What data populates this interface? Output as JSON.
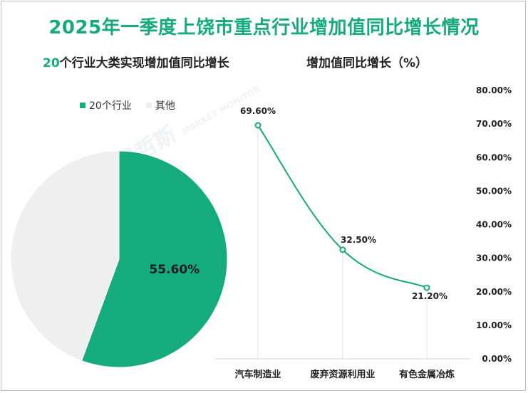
{
  "title": "2025年一季度上饶市重点行业增加值同比增长情况",
  "watermark": {
    "brand": "贝哲斯",
    "sub": "MARKET MONITOR"
  },
  "colors": {
    "accent": "#16ab7c",
    "other": "#efefef",
    "grid": "#e3e3e3",
    "text": "#222222"
  },
  "pie": {
    "subtitle_accent": "20",
    "subtitle_rest": "个行业大类实现增加值同比增长",
    "legend": [
      {
        "label": "20个行业",
        "color": "#16ab7c"
      },
      {
        "label": "其他",
        "color": "#efefef"
      }
    ]
  },
  "chart_data": [
    {
      "type": "pie",
      "title": "20个行业大类实现增加值同比增长",
      "labels": [
        "20个行业",
        "其他"
      ],
      "values": [
        55.6,
        44.4
      ],
      "data_labels": [
        "55.60%",
        ""
      ]
    },
    {
      "type": "line",
      "title": "增加值同比增长（%）",
      "categories": [
        "汽车制造业",
        "废弃资源利用业",
        "有色金属冶炼"
      ],
      "series": [
        {
          "name": "增加值同比增长",
          "values": [
            69.6,
            32.5,
            21.2
          ]
        }
      ],
      "data_labels": [
        "69.60%",
        "32.50%",
        "21.20%"
      ],
      "ylim": [
        0,
        80
      ],
      "yticks": [
        "0.00%",
        "10.00%",
        "20.00%",
        "30.00%",
        "40.00%",
        "50.00%",
        "60.00%",
        "70.00%",
        "80.00%"
      ],
      "yaxis_position": "right"
    }
  ]
}
